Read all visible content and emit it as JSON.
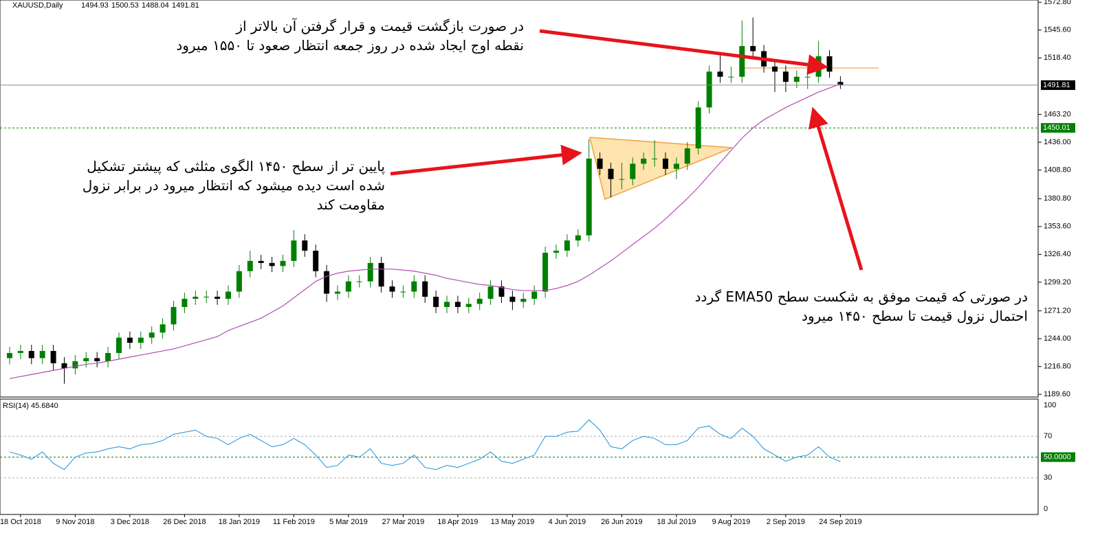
{
  "chart_data": [
    {
      "type": "candlestick",
      "title": "XAUUSD,Daily",
      "categories": [
        null,
        "18 Oct 2018",
        null,
        null,
        null,
        null,
        "9 Nov 2018",
        null,
        null,
        null,
        null,
        "3 Dec 2018",
        null,
        null,
        null,
        null,
        "26 Dec 2018",
        null,
        null,
        null,
        null,
        "18 Jan 2019",
        null,
        null,
        null,
        null,
        "11 Feb 2019",
        null,
        null,
        null,
        null,
        "5 Mar 2019",
        null,
        null,
        null,
        null,
        "27 Mar 2019",
        null,
        null,
        null,
        null,
        "18 Apr 2019",
        null,
        null,
        null,
        null,
        "13 May 2019",
        null,
        null,
        null,
        null,
        "4 Jun 2019",
        null,
        null,
        null,
        null,
        "26 Jun 2019",
        null,
        null,
        null,
        null,
        "18 Jul 2019",
        null,
        null,
        null,
        null,
        "9 Aug 2019",
        null,
        null,
        null,
        null,
        "2 Sep 2019",
        null,
        null,
        null,
        null,
        "24 Sep 2019"
      ],
      "open": [
        1225,
        1230,
        1232,
        1225,
        1232,
        1220,
        1215,
        1222,
        1225,
        1222,
        1230,
        1245,
        1240,
        1245,
        1250,
        1258,
        1275,
        1283,
        1285,
        1285,
        1283,
        1290,
        1310,
        1320,
        1318,
        1315,
        1320,
        1340,
        1330,
        1310,
        1288,
        1290,
        1300,
        1300,
        1318,
        1295,
        1290,
        1290,
        1300,
        1285,
        1275,
        1280,
        1275,
        1278,
        1283,
        1295,
        1285,
        1280,
        1283,
        1290,
        1328,
        1330,
        1340,
        1345,
        1420,
        1410,
        1400,
        1400,
        1415,
        1420,
        1420,
        1410,
        1415,
        1430,
        1470,
        1505,
        1500,
        1500,
        1530,
        1525,
        1510,
        1505,
        1495,
        1500,
        1500,
        1520,
        1494.93
      ],
      "high": [
        1236,
        1238,
        1238,
        1238,
        1238,
        1226,
        1228,
        1231,
        1231,
        1236,
        1250,
        1251,
        1251,
        1256,
        1264,
        1281,
        1289,
        1291,
        1291,
        1291,
        1296,
        1316,
        1330,
        1326,
        1324,
        1326,
        1350,
        1346,
        1336,
        1316,
        1296,
        1306,
        1306,
        1324,
        1324,
        1301,
        1296,
        1306,
        1306,
        1291,
        1286,
        1286,
        1284,
        1289,
        1301,
        1301,
        1291,
        1289,
        1296,
        1334,
        1336,
        1346,
        1351,
        1439,
        1426,
        1416,
        1416,
        1421,
        1426,
        1438,
        1426,
        1421,
        1436,
        1476,
        1511,
        1524,
        1510,
        1555,
        1558,
        1531,
        1516,
        1511,
        1506,
        1510,
        1535,
        1526,
        1500.53
      ],
      "low": [
        1219,
        1224,
        1219,
        1219,
        1213,
        1200,
        1209,
        1216,
        1216,
        1216,
        1224,
        1234,
        1234,
        1239,
        1244,
        1252,
        1269,
        1277,
        1279,
        1277,
        1277,
        1284,
        1304,
        1312,
        1309,
        1309,
        1314,
        1324,
        1304,
        1280,
        1282,
        1284,
        1294,
        1294,
        1289,
        1284,
        1284,
        1284,
        1279,
        1269,
        1269,
        1269,
        1269,
        1272,
        1277,
        1279,
        1272,
        1274,
        1277,
        1284,
        1322,
        1324,
        1334,
        1339,
        1404,
        1382,
        1390,
        1394,
        1409,
        1412,
        1404,
        1400,
        1409,
        1424,
        1464,
        1494,
        1494,
        1494,
        1517,
        1504,
        1485,
        1485,
        1489,
        1488,
        1494,
        1499,
        1488.04
      ],
      "close": [
        1230,
        1232,
        1225,
        1232,
        1220,
        1215,
        1222,
        1225,
        1222,
        1230,
        1245,
        1240,
        1245,
        1250,
        1258,
        1275,
        1283,
        1285,
        1285,
        1283,
        1290,
        1310,
        1320,
        1318,
        1315,
        1320,
        1340,
        1330,
        1310,
        1288,
        1290,
        1300,
        1300,
        1318,
        1295,
        1290,
        1290,
        1300,
        1285,
        1275,
        1280,
        1275,
        1278,
        1283,
        1295,
        1285,
        1280,
        1283,
        1290,
        1328,
        1330,
        1340,
        1345,
        1420,
        1410,
        1400,
        1400,
        1415,
        1420,
        1420,
        1410,
        1415,
        1430,
        1470,
        1505,
        1500,
        1500,
        1530,
        1525,
        1510,
        1505,
        1495,
        1500,
        1500,
        1520,
        1505,
        1491.81
      ],
      "up_color": "#008000",
      "down_color": "#000000",
      "ema": {
        "color": "#b04cb0",
        "values": [
          1205,
          1207,
          1209,
          1211,
          1213,
          1215,
          1217,
          1219,
          1220,
          1222,
          1224,
          1226,
          1228,
          1230,
          1232,
          1234,
          1237,
          1240,
          1243,
          1246,
          1252,
          1256,
          1260,
          1264,
          1270,
          1276,
          1284,
          1292,
          1300,
          1305,
          1308,
          1310,
          1311,
          1312,
          1312,
          1312,
          1311,
          1310,
          1308,
          1306,
          1303,
          1301,
          1299,
          1297,
          1296,
          1294,
          1292,
          1291,
          1291,
          1291,
          1293,
          1296,
          1300,
          1306,
          1313,
          1320,
          1328,
          1336,
          1344,
          1352,
          1361,
          1371,
          1381,
          1392,
          1404,
          1416,
          1428,
          1440,
          1450,
          1458,
          1464,
          1470,
          1475,
          1480,
          1485,
          1489,
          1493
        ]
      },
      "level": {
        "value": 1450.01,
        "color": "#008000"
      },
      "ylim": [
        1187,
        1575
      ],
      "yticks": [
        {
          "value": 1572.8,
          "label": "1572.80"
        },
        {
          "value": 1545.6,
          "label": "1545.60"
        },
        {
          "value": 1518.4,
          "label": "1518.40"
        },
        {
          "value": 1463.2,
          "label": "1463.20"
        },
        {
          "value": 1436,
          "label": "1436.00"
        },
        {
          "value": 1408.8,
          "label": "1408.80"
        },
        {
          "value": 1380.8,
          "label": "1380.80"
        },
        {
          "value": 1353.6,
          "label": "1353.60"
        },
        {
          "value": 1326.4,
          "label": "1326.40"
        },
        {
          "value": 1299.2,
          "label": "1299.20"
        },
        {
          "value": 1271.2,
          "label": "1271.20"
        },
        {
          "value": 1244,
          "label": "1244.00"
        },
        {
          "value": 1216.8,
          "label": "1216.80"
        },
        {
          "value": 1189.6,
          "label": "1189.60"
        }
      ]
    },
    {
      "type": "line",
      "title": "RSI(14) 45.6840",
      "color": "#1e90d8",
      "values": [
        55,
        52,
        48,
        55,
        44,
        38,
        50,
        54,
        55,
        58,
        60,
        58,
        62,
        63,
        66,
        72,
        74,
        76,
        70,
        68,
        62,
        68,
        72,
        66,
        60,
        62,
        68,
        62,
        52,
        40,
        42,
        52,
        50,
        58,
        44,
        42,
        44,
        52,
        40,
        38,
        42,
        40,
        44,
        48,
        55,
        46,
        44,
        48,
        52,
        70,
        70,
        74,
        75,
        86,
        76,
        60,
        58,
        66,
        70,
        68,
        62,
        62,
        66,
        78,
        80,
        72,
        68,
        78,
        70,
        58,
        52,
        46,
        50,
        52,
        60,
        50,
        45.684
      ],
      "ylim": [
        0,
        100
      ],
      "yticks": [
        100,
        70,
        {
          "value": 50,
          "label": "50.0000",
          "color": "#008000"
        },
        30,
        0
      ]
    }
  ],
  "annotations": [
    {
      "lines": [
        "در صورت بازگشت قیمت و قرار گرفتن آن بالاتر از",
        "نقطه اوج ایجاد شده در روز جمعه انتظار صعود تا ۱۵۵۰ میرود"
      ]
    },
    {
      "lines": [
        "پایین تر از سطح ۱۴۵۰ الگوی مثلثی که پیشتر تشکیل",
        "شده است دیده میشود که انتظار میرود در برابر نزول",
        "مقاومت کند"
      ]
    },
    {
      "lines": [
        "در صورتی که قیمت موفق به شکست سطح EMA50 گردد",
        "احتمال نزول قیمت تا سطح ۱۴۵۰ میرود"
      ]
    }
  ]
}
